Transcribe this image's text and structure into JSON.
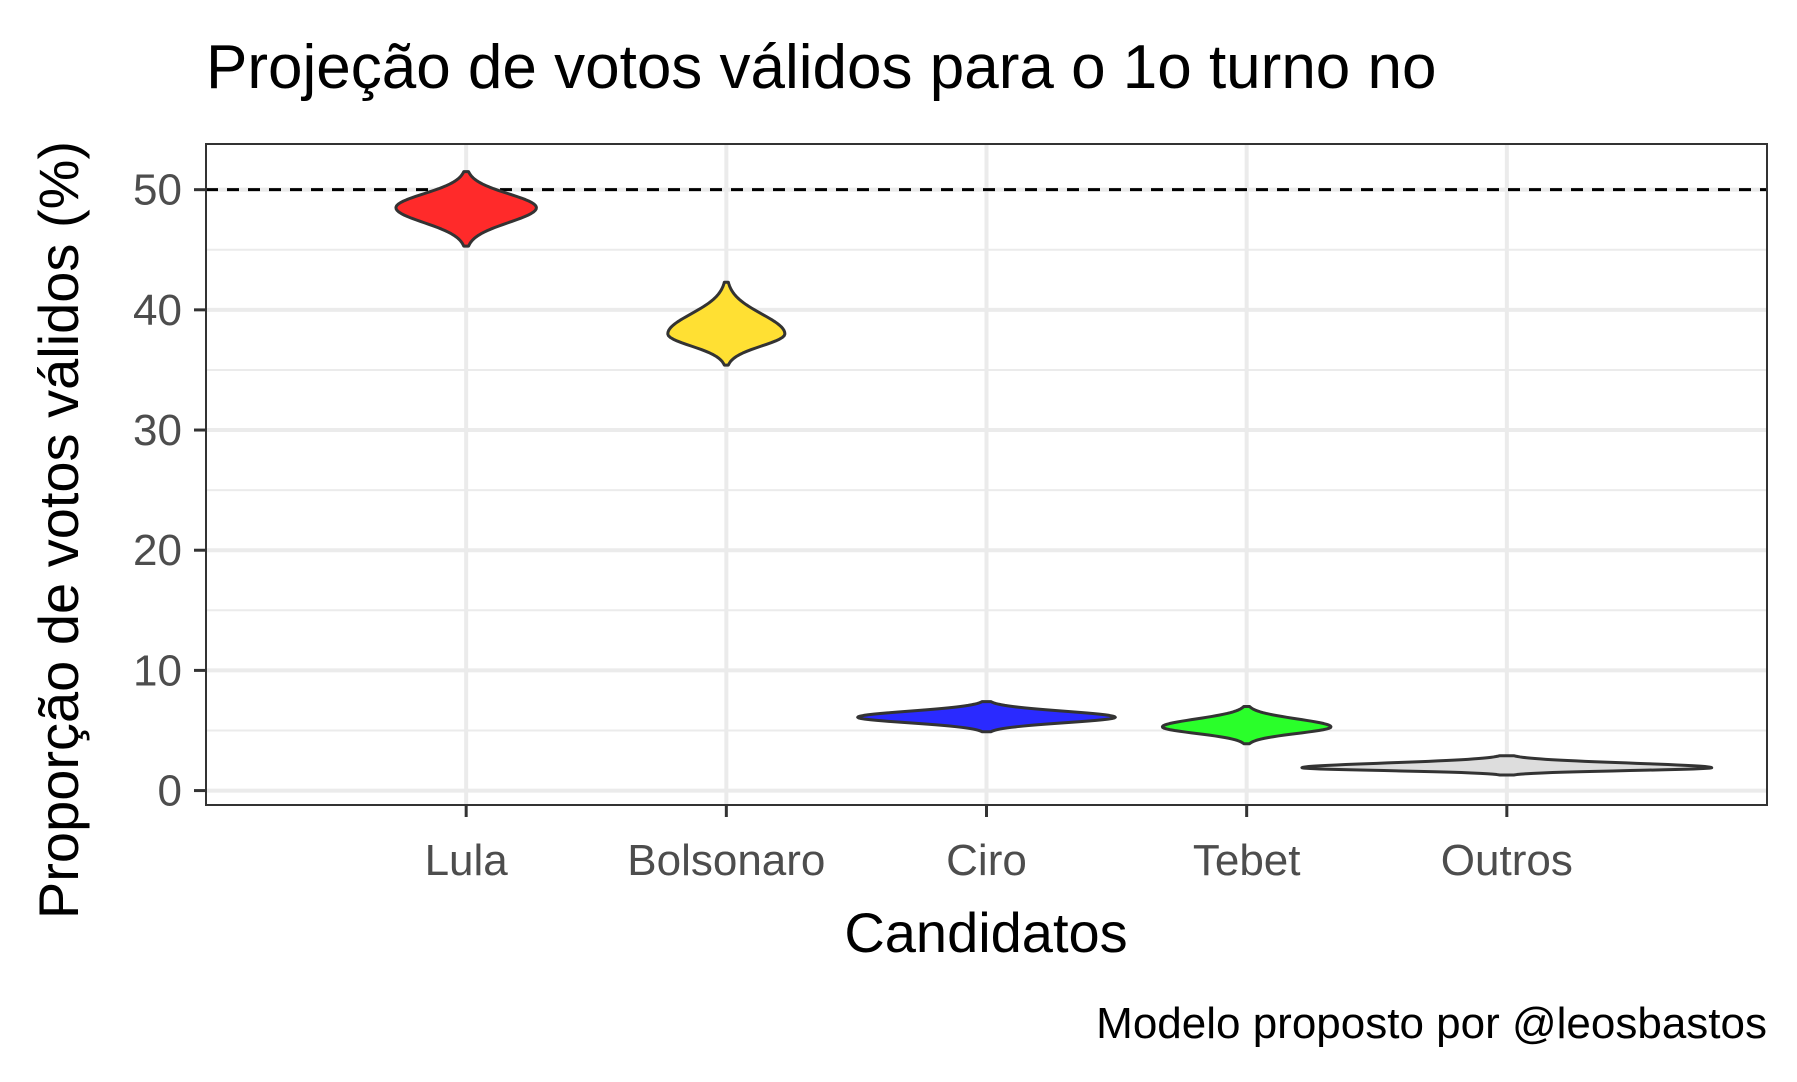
{
  "chart_data": {
    "type": "violin",
    "title": "Projeção de votos válidos para o 1o turno no",
    "xlabel": "Candidatos",
    "ylabel": "Proporção de votos válidos (%)",
    "caption": "Modelo proposto por @leosbastos",
    "ylim": [
      -1.2,
      53.8
    ],
    "yticks": [
      0,
      10,
      20,
      30,
      40,
      50
    ],
    "grid": true,
    "reference_line": {
      "y": 50,
      "style": "dashed"
    },
    "categories": [
      "Lula",
      "Bolsonaro",
      "Ciro",
      "Tebet",
      "Outros"
    ],
    "series": [
      {
        "category": "Lula",
        "color": "#FF2A2A",
        "min": 45.3,
        "mode": 48.5,
        "max": 51.5,
        "relative_width": 0.6
      },
      {
        "category": "Bolsonaro",
        "color": "#FFE033",
        "min": 35.4,
        "mode": 38.0,
        "max": 42.3,
        "relative_width": 0.5
      },
      {
        "category": "Ciro",
        "color": "#2A2AFF",
        "min": 4.9,
        "mode": 6.1,
        "max": 7.4,
        "relative_width": 1.1
      },
      {
        "category": "Tebet",
        "color": "#2AFF2A",
        "min": 3.9,
        "mode": 5.3,
        "max": 7.0,
        "relative_width": 0.72
      },
      {
        "category": "Outros",
        "color": "#DDDDDD",
        "min": 1.3,
        "mode": 1.9,
        "max": 2.9,
        "relative_width": 1.75
      }
    ]
  }
}
